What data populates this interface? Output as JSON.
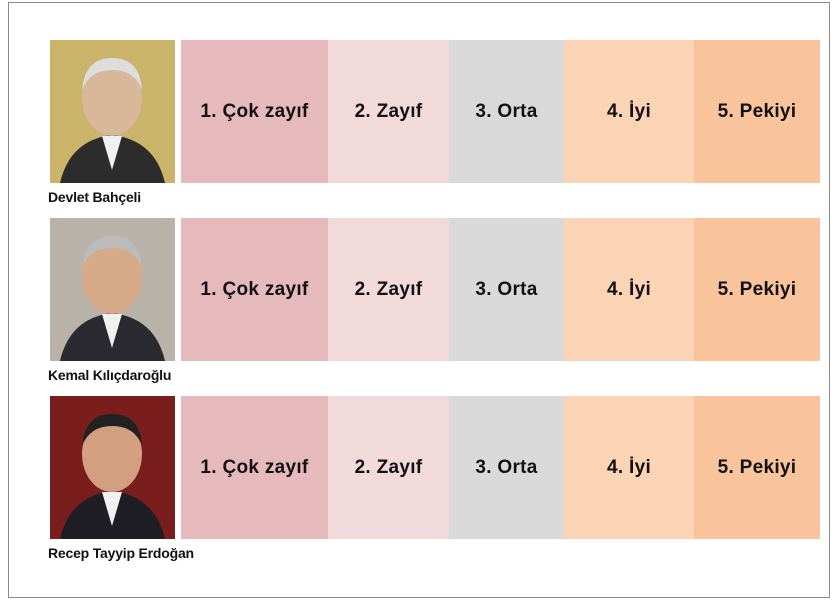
{
  "rows": [
    {
      "name": "Devlet Bahçeli",
      "ratings": [
        "1. Çok zayıf",
        "2. Zayıf",
        "3. Orta",
        "4. İyi",
        "5. Pekiyi"
      ]
    },
    {
      "name": "Kemal Kılıçdaroğlu",
      "ratings": [
        "1. Çok zayıf",
        "2. Zayıf",
        "3. Orta",
        "4. İyi",
        "5. Pekiyi"
      ]
    },
    {
      "name": "Recep Tayyip Erdoğan",
      "ratings": [
        "1. Çok zayıf",
        "2. Zayıf",
        "3. Orta",
        "4. İyi",
        "5. Pekiyi"
      ]
    }
  ]
}
